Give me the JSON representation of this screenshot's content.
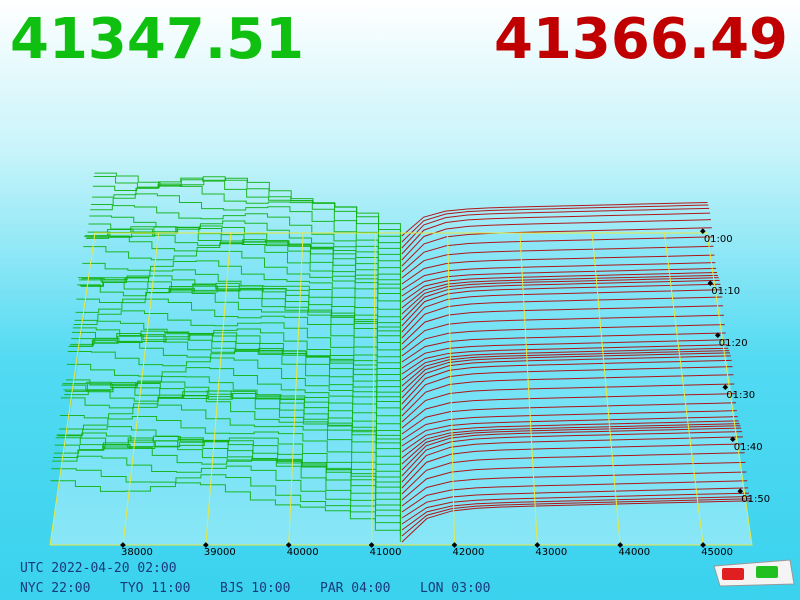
{
  "header": {
    "bid": "41347.51",
    "ask": "41366.49"
  },
  "chart_data": {
    "type": "depth3d",
    "xlim": [
      37120,
      45590
    ],
    "xticks": [
      38000,
      39000,
      40000,
      41000,
      42000,
      43000,
      44000,
      45000
    ],
    "ylim": [
      59,
      119
    ],
    "yticks": [
      {
        "value": 60,
        "label": "01:00"
      },
      {
        "value": 70,
        "label": "01:10"
      },
      {
        "value": 80,
        "label": "01:20"
      },
      {
        "value": 90,
        "label": "01:30"
      },
      {
        "value": 100,
        "label": "01:40"
      },
      {
        "value": 110,
        "label": "01:50"
      }
    ],
    "bid": 41347.51,
    "ask": 41366.49,
    "bid_color": "#10b010",
    "ask_color": "#b00000",
    "grid_color": "#e8e840"
  },
  "footer": {
    "utc": "UTC 2022-04-20 02:00",
    "zones": [
      "NYC 22:00",
      "TYO 11:00",
      "BJS 10:00",
      "PAR 04:00",
      "LON 03:00"
    ]
  }
}
